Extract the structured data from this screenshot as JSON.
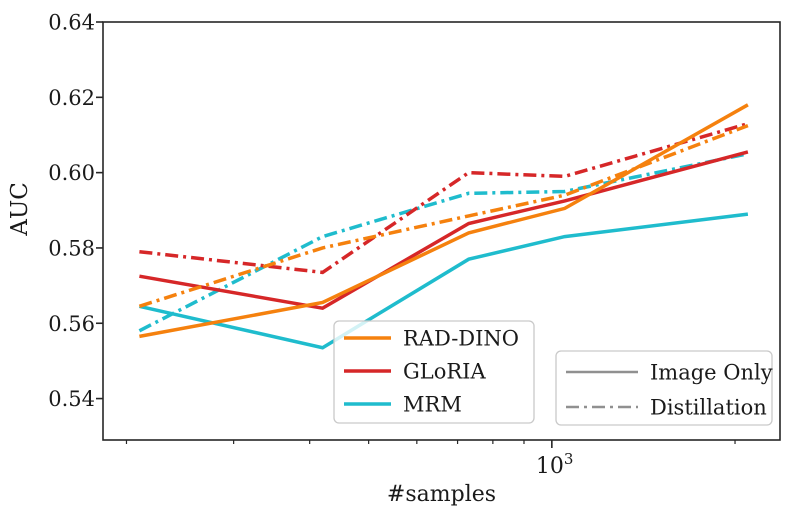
{
  "figure": {
    "kind": "matplotlib-style line chart",
    "background": "#ffffff"
  },
  "chart_data": {
    "type": "line",
    "title": "",
    "xlabel": "#samples",
    "ylabel": "AUC",
    "x_scale": "log",
    "xlim": [
      183,
      2371
    ],
    "ylim": [
      0.529,
      0.64
    ],
    "grid": false,
    "yticks": [
      0.54,
      0.56,
      0.58,
      0.6,
      0.62,
      0.64
    ],
    "ytick_labels": [
      "0.54",
      "0.56",
      "0.58",
      "0.60",
      "0.62",
      "0.64"
    ],
    "xtick_major": {
      "value": 1000,
      "label_base": "10",
      "label_exp": "3"
    },
    "xticks_minor": [
      200,
      300,
      400,
      500,
      600,
      700,
      800,
      900,
      2000
    ],
    "x": [
      210,
      420,
      730,
      1050,
      2100
    ],
    "series": [
      {
        "name": "MRM",
        "variant": "Image Only",
        "style": "solid",
        "color": "#1fbccd",
        "values": [
          0.5645,
          0.5535,
          0.577,
          0.583,
          0.589
        ]
      },
      {
        "name": "MRM",
        "variant": "Distillation",
        "style": "dashdot",
        "color": "#1fbccd",
        "values": [
          0.558,
          0.583,
          0.5945,
          0.595,
          0.605
        ]
      },
      {
        "name": "GLoRIA",
        "variant": "Image Only",
        "style": "solid",
        "color": "#d62728",
        "values": [
          0.5725,
          0.564,
          0.5865,
          0.5925,
          0.6055
        ]
      },
      {
        "name": "GLoRIA",
        "variant": "Distillation",
        "style": "dashdot",
        "color": "#d62728",
        "values": [
          0.579,
          0.5735,
          0.6,
          0.599,
          0.613
        ]
      },
      {
        "name": "RAD-DINO",
        "variant": "Image Only",
        "style": "solid",
        "color": "#f5810e",
        "values": [
          0.5565,
          0.5655,
          0.584,
          0.5905,
          0.618
        ]
      },
      {
        "name": "RAD-DINO",
        "variant": "Distillation",
        "style": "dashdot",
        "color": "#f5810e",
        "values": [
          0.5645,
          0.58,
          0.5885,
          0.594,
          0.6125
        ]
      }
    ],
    "legend_models": {
      "position": "lower center-left inside axes",
      "entries": [
        {
          "label": "RAD-DINO",
          "color": "#f5810e"
        },
        {
          "label": "GLoRIA",
          "color": "#d62728"
        },
        {
          "label": "MRM",
          "color": "#1fbccd"
        }
      ]
    },
    "legend_styles": {
      "position": "lower right inside axes",
      "swatch_color": "#909090",
      "entries": [
        {
          "label": "Image Only",
          "style": "solid"
        },
        {
          "label": "Distillation",
          "style": "dashdot"
        }
      ]
    },
    "colors": {
      "spine": "#262626",
      "text": "#1a1a1a",
      "legend_border": "#c9c9c9",
      "legend_bg_alpha": 0.8
    }
  }
}
